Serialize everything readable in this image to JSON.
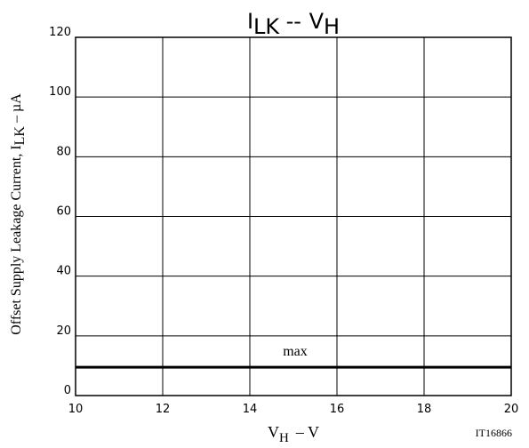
{
  "chart_data": {
    "type": "line",
    "title": {
      "main": "I",
      "main_sub": "LK",
      "sep": "--",
      "var": "V",
      "var_sub": "H"
    },
    "xlabel": {
      "main": "V",
      "sub": "H",
      "unit": "– V"
    },
    "ylabel": {
      "main": "Offset Supply Leakage Current, I",
      "sub": "LK",
      "unit": " – µA"
    },
    "xlim": [
      10,
      20
    ],
    "ylim": [
      0,
      120
    ],
    "x_ticks": [
      "10",
      "12",
      "14",
      "16",
      "18",
      "20"
    ],
    "y_ticks": [
      "0",
      "20",
      "40",
      "60",
      "80",
      "100",
      "120"
    ],
    "grid": true,
    "series": [
      {
        "name": "max",
        "x": [
          10,
          20
        ],
        "y": [
          9.5,
          9.5
        ]
      }
    ],
    "annotation": "IT16866",
    "colors": {
      "line": "#000000",
      "grid": "#000000",
      "background": "#ffffff"
    }
  }
}
